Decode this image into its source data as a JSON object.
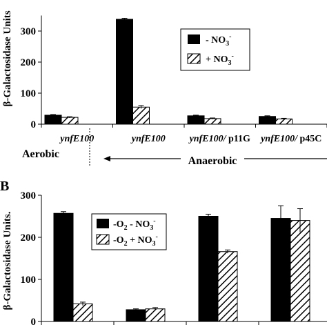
{
  "chart_data": [
    {
      "panel_label": "",
      "type": "bar",
      "ylabel": "β-Galactosidase Units",
      "ylim": [
        0,
        350
      ],
      "yticks": [
        "0",
        "100",
        "200",
        "300"
      ],
      "categories": [
        {
          "strain": "ynfE100",
          "plasmid": ""
        },
        {
          "strain": "ynfE100",
          "plasmid": ""
        },
        {
          "strain": "ynfE100/",
          "plasmid": " p11G"
        },
        {
          "strain": "ynfE100/",
          "plasmid": " p45C"
        }
      ],
      "conditions": {
        "aerobic": "Aerobic",
        "anaerobic": "Anaerobic"
      },
      "series": [
        {
          "name": "- NO3-",
          "fill": "#000000",
          "values": [
            29,
            338,
            27,
            25
          ],
          "errors": [
            2,
            3,
            2,
            2
          ]
        },
        {
          "name": "+ NO3-",
          "fill": "hatch",
          "values": [
            22,
            55,
            18,
            17
          ],
          "errors": [
            2,
            5,
            2,
            2
          ]
        }
      ],
      "legend": {
        "position": "right",
        "entries": [
          {
            "prefix": "- NO",
            "sub": "3",
            "sup": "-"
          },
          {
            "prefix": "+ NO",
            "sub": "3",
            "sup": "-"
          }
        ]
      }
    },
    {
      "panel_label": "B",
      "type": "bar",
      "ylabel": "β-Galactosidase Units.",
      "ylim": [
        0,
        300
      ],
      "yticks": [
        "0",
        "100",
        "200",
        "300"
      ],
      "categories": [
        "",
        "",
        "",
        ""
      ],
      "series": [
        {
          "name": "-O2 - NO3-",
          "fill": "#000000",
          "values": [
            257,
            28,
            250,
            245
          ],
          "errors": [
            4,
            2,
            5,
            30
          ]
        },
        {
          "name": "-O2 + NO3-",
          "fill": "hatch",
          "values": [
            42,
            30,
            166,
            240
          ],
          "errors": [
            4,
            3,
            4,
            28
          ]
        }
      ],
      "legend": {
        "position": "top-center",
        "entries": [
          {
            "prefix": "-O",
            "sub1": "2",
            "mid": " - NO",
            "sub": "3",
            "sup": "-"
          },
          {
            "prefix": "-O",
            "sub1": "2",
            "mid": " + NO",
            "sub": "3",
            "sup": "-"
          }
        ]
      }
    }
  ]
}
